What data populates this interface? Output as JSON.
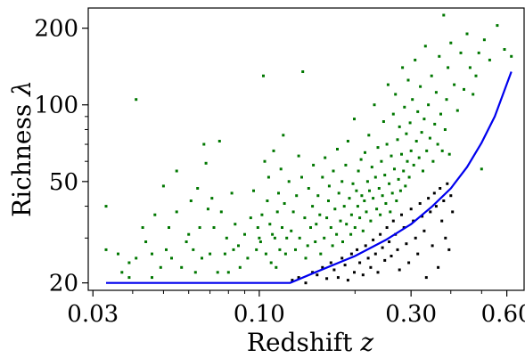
{
  "chart_data": {
    "type": "scatter",
    "xscale": "log",
    "yscale": "log",
    "xlim": [
      0.029,
      0.68
    ],
    "ylim": [
      18.7,
      240
    ],
    "xticks": [
      {
        "value": 0.03,
        "label": "0.03"
      },
      {
        "value": 0.1,
        "label": "0.10"
      },
      {
        "value": 0.3,
        "label": "0.30"
      },
      {
        "value": 0.6,
        "label": "0.60"
      }
    ],
    "yticks": [
      {
        "value": 20,
        "label": "20"
      },
      {
        "value": 50,
        "label": "50"
      },
      {
        "value": 100,
        "label": "100"
      },
      {
        "value": 200,
        "label": "200"
      }
    ],
    "xminor": [
      0.04,
      0.05,
      0.06,
      0.07,
      0.08,
      0.09,
      0.2,
      0.4,
      0.5
    ],
    "yminor": [
      30,
      40,
      60,
      70,
      80,
      90
    ],
    "xlabel_text": "Redshift",
    "xlabel_symbol": "z",
    "ylabel_text": "Richness",
    "ylabel_symbol": "λ",
    "colors": {
      "green": "#007700",
      "black": "#000000",
      "curve": "#0000ee"
    },
    "curve": {
      "x": [
        0.033,
        0.125,
        0.15,
        0.2,
        0.25,
        0.3,
        0.35,
        0.4,
        0.45,
        0.5,
        0.55,
        0.62
      ],
      "y": [
        20,
        20,
        22,
        25.5,
        29.5,
        34,
        40,
        47,
        57,
        71,
        90,
        135
      ]
    },
    "series": [
      {
        "color": "green",
        "points": [
          [
            0.033,
            40
          ],
          [
            0.033,
            27
          ],
          [
            0.036,
            26
          ],
          [
            0.037,
            22
          ],
          [
            0.039,
            21
          ],
          [
            0.039,
            24
          ],
          [
            0.041,
            25
          ],
          [
            0.041,
            105
          ],
          [
            0.043,
            33
          ],
          [
            0.044,
            29
          ],
          [
            0.046,
            26
          ],
          [
            0.046,
            21
          ],
          [
            0.047,
            37
          ],
          [
            0.049,
            23
          ],
          [
            0.05,
            48
          ],
          [
            0.051,
            27
          ],
          [
            0.052,
            33
          ],
          [
            0.053,
            25
          ],
          [
            0.055,
            38
          ],
          [
            0.055,
            55
          ],
          [
            0.057,
            23
          ],
          [
            0.059,
            29
          ],
          [
            0.06,
            31
          ],
          [
            0.061,
            42
          ],
          [
            0.062,
            27
          ],
          [
            0.063,
            22
          ],
          [
            0.064,
            47
          ],
          [
            0.065,
            33
          ],
          [
            0.066,
            25
          ],
          [
            0.067,
            70
          ],
          [
            0.068,
            59
          ],
          [
            0.069,
            39
          ],
          [
            0.07,
            26
          ],
          [
            0.071,
            43
          ],
          [
            0.072,
            33
          ],
          [
            0.074,
            22
          ],
          [
            0.075,
            72
          ],
          [
            0.076,
            38
          ],
          [
            0.078,
            26
          ],
          [
            0.079,
            30
          ],
          [
            0.08,
            22
          ],
          [
            0.082,
            45
          ],
          [
            0.083,
            27
          ],
          [
            0.084,
            34
          ],
          [
            0.086,
            28
          ],
          [
            0.087,
            23
          ],
          [
            0.09,
            31
          ],
          [
            0.092,
            25
          ],
          [
            0.094,
            36
          ],
          [
            0.096,
            46
          ],
          [
            0.098,
            27
          ],
          [
            0.099,
            33
          ],
          [
            0.1,
            30
          ],
          [
            0.101,
            29
          ],
          [
            0.102,
            37
          ],
          [
            0.103,
            130
          ],
          [
            0.104,
            60
          ],
          [
            0.105,
            26
          ],
          [
            0.106,
            42
          ],
          [
            0.107,
            52
          ],
          [
            0.108,
            34
          ],
          [
            0.109,
            24
          ],
          [
            0.11,
            31
          ],
          [
            0.111,
            66
          ],
          [
            0.112,
            30
          ],
          [
            0.113,
            23
          ],
          [
            0.114,
            38
          ],
          [
            0.115,
            45
          ],
          [
            0.116,
            27
          ],
          [
            0.117,
            56
          ],
          [
            0.118,
            33
          ],
          [
            0.119,
            76
          ],
          [
            0.12,
            41
          ],
          [
            0.121,
            26
          ],
          [
            0.122,
            30
          ],
          [
            0.124,
            50
          ],
          [
            0.126,
            32
          ],
          [
            0.128,
            38
          ],
          [
            0.13,
            27
          ],
          [
            0.131,
            44
          ],
          [
            0.133,
            63
          ],
          [
            0.134,
            30
          ],
          [
            0.136,
            52
          ],
          [
            0.137,
            135
          ],
          [
            0.139,
            36
          ],
          [
            0.14,
            25
          ],
          [
            0.142,
            28
          ],
          [
            0.143,
            47
          ],
          [
            0.145,
            33
          ],
          [
            0.147,
            40
          ],
          [
            0.148,
            58
          ],
          [
            0.15,
            29
          ],
          [
            0.151,
            34
          ],
          [
            0.153,
            44
          ],
          [
            0.155,
            37
          ],
          [
            0.156,
            26
          ],
          [
            0.158,
            52
          ],
          [
            0.16,
            30
          ],
          [
            0.161,
            62
          ],
          [
            0.163,
            36
          ],
          [
            0.165,
            42
          ],
          [
            0.166,
            48
          ],
          [
            0.168,
            33
          ],
          [
            0.17,
            28
          ],
          [
            0.171,
            55
          ],
          [
            0.173,
            39
          ],
          [
            0.175,
            31
          ],
          [
            0.176,
            67
          ],
          [
            0.178,
            45
          ],
          [
            0.18,
            35
          ],
          [
            0.182,
            50
          ],
          [
            0.183,
            29
          ],
          [
            0.185,
            40
          ],
          [
            0.187,
            58
          ],
          [
            0.188,
            34
          ],
          [
            0.19,
            72
          ],
          [
            0.192,
            43
          ],
          [
            0.194,
            31
          ],
          [
            0.195,
            37
          ],
          [
            0.197,
            49
          ],
          [
            0.199,
            88
          ],
          [
            0.2,
            33
          ],
          [
            0.202,
            46
          ],
          [
            0.204,
            40
          ],
          [
            0.205,
            55
          ],
          [
            0.207,
            36
          ],
          [
            0.209,
            61
          ],
          [
            0.21,
            44
          ],
          [
            0.212,
            32
          ],
          [
            0.214,
            42
          ],
          [
            0.215,
            65
          ],
          [
            0.217,
            38
          ],
          [
            0.219,
            50
          ],
          [
            0.221,
            76
          ],
          [
            0.222,
            46
          ],
          [
            0.224,
            35
          ],
          [
            0.226,
            57
          ],
          [
            0.228,
            43
          ],
          [
            0.23,
            100
          ],
          [
            0.232,
            52
          ],
          [
            0.234,
            39
          ],
          [
            0.236,
            68
          ],
          [
            0.238,
            47
          ],
          [
            0.24,
            37
          ],
          [
            0.242,
            60
          ],
          [
            0.244,
            44
          ],
          [
            0.246,
            86
          ],
          [
            0.248,
            53
          ],
          [
            0.25,
            41
          ],
          [
            0.252,
            70
          ],
          [
            0.254,
            120
          ],
          [
            0.256,
            49
          ],
          [
            0.258,
            38
          ],
          [
            0.26,
            63
          ],
          [
            0.262,
            45
          ],
          [
            0.264,
            92
          ],
          [
            0.266,
            56
          ],
          [
            0.268,
            110
          ],
          [
            0.27,
            42
          ],
          [
            0.272,
            73
          ],
          [
            0.274,
            51
          ],
          [
            0.276,
            82
          ],
          [
            0.278,
            46
          ],
          [
            0.28,
            64
          ],
          [
            0.282,
            140
          ],
          [
            0.284,
            55
          ],
          [
            0.286,
            98
          ],
          [
            0.288,
            48
          ],
          [
            0.29,
            77
          ],
          [
            0.292,
            60
          ],
          [
            0.294,
            125
          ],
          [
            0.296,
            52
          ],
          [
            0.298,
            85
          ],
          [
            0.3,
            66
          ],
          [
            0.303,
            105
          ],
          [
            0.306,
            58
          ],
          [
            0.309,
            150
          ],
          [
            0.312,
            72
          ],
          [
            0.315,
            94
          ],
          [
            0.318,
            62
          ],
          [
            0.321,
            118
          ],
          [
            0.324,
            78
          ],
          [
            0.327,
            55
          ],
          [
            0.33,
            88
          ],
          [
            0.333,
            170
          ],
          [
            0.336,
            66
          ],
          [
            0.34,
            100
          ],
          [
            0.344,
            74
          ],
          [
            0.348,
            130
          ],
          [
            0.352,
            60
          ],
          [
            0.356,
            84
          ],
          [
            0.36,
            112
          ],
          [
            0.364,
            70
          ],
          [
            0.368,
            155
          ],
          [
            0.372,
            92
          ],
          [
            0.376,
            66
          ],
          [
            0.38,
            225
          ],
          [
            0.384,
            80
          ],
          [
            0.388,
            105
          ],
          [
            0.392,
            140
          ],
          [
            0.396,
            64
          ],
          [
            0.4,
            175
          ],
          [
            0.41,
            120
          ],
          [
            0.42,
            95
          ],
          [
            0.43,
            160
          ],
          [
            0.44,
            115
          ],
          [
            0.45,
            190
          ],
          [
            0.46,
            140
          ],
          [
            0.47,
            110
          ],
          [
            0.48,
            130
          ],
          [
            0.49,
            160
          ],
          [
            0.51,
            180
          ],
          [
            0.53,
            150
          ],
          [
            0.56,
            205
          ],
          [
            0.59,
            165
          ],
          [
            0.62,
            155
          ],
          [
            0.5,
            56
          ]
        ]
      },
      {
        "color": "black",
        "points": [
          [
            0.127,
            20.5
          ],
          [
            0.133,
            21
          ],
          [
            0.14,
            20
          ],
          [
            0.147,
            22
          ],
          [
            0.152,
            21.5
          ],
          [
            0.158,
            23
          ],
          [
            0.163,
            20.8
          ],
          [
            0.168,
            24
          ],
          [
            0.172,
            22.5
          ],
          [
            0.177,
            21
          ],
          [
            0.182,
            25
          ],
          [
            0.186,
            23.5
          ],
          [
            0.19,
            20.5
          ],
          [
            0.195,
            26
          ],
          [
            0.199,
            22
          ],
          [
            0.203,
            27
          ],
          [
            0.207,
            24
          ],
          [
            0.212,
            21.5
          ],
          [
            0.216,
            28
          ],
          [
            0.22,
            25
          ],
          [
            0.224,
            23
          ],
          [
            0.228,
            29.5
          ],
          [
            0.232,
            26
          ],
          [
            0.236,
            22
          ],
          [
            0.24,
            31
          ],
          [
            0.244,
            27.5
          ],
          [
            0.248,
            24.5
          ],
          [
            0.252,
            33
          ],
          [
            0.256,
            29
          ],
          [
            0.26,
            25.5
          ],
          [
            0.264,
            35
          ],
          [
            0.268,
            31
          ],
          [
            0.272,
            27
          ],
          [
            0.276,
            22.5
          ],
          [
            0.28,
            37
          ],
          [
            0.285,
            33
          ],
          [
            0.29,
            28.5
          ],
          [
            0.295,
            24
          ],
          [
            0.3,
            39
          ],
          [
            0.305,
            35
          ],
          [
            0.31,
            30
          ],
          [
            0.315,
            26
          ],
          [
            0.32,
            41
          ],
          [
            0.325,
            36.5
          ],
          [
            0.33,
            32
          ],
          [
            0.335,
            21
          ],
          [
            0.34,
            43
          ],
          [
            0.345,
            38
          ],
          [
            0.35,
            28
          ],
          [
            0.355,
            45
          ],
          [
            0.36,
            40
          ],
          [
            0.365,
            23
          ],
          [
            0.37,
            47
          ],
          [
            0.375,
            35
          ],
          [
            0.38,
            42
          ],
          [
            0.385,
            30
          ],
          [
            0.39,
            49
          ],
          [
            0.395,
            27
          ],
          [
            0.4,
            44
          ],
          [
            0.405,
            38
          ]
        ]
      }
    ]
  }
}
